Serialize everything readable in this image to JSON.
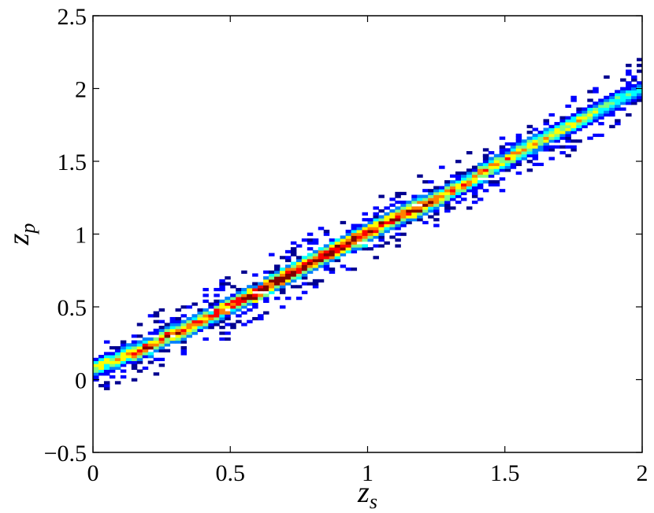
{
  "chart_data": {
    "type": "heatmap",
    "title": "",
    "xlabel": "z",
    "xlabel_sub": "s",
    "ylabel": "z",
    "ylabel_sub": "p",
    "xlim": [
      0,
      2
    ],
    "ylim": [
      -0.5,
      2.5
    ],
    "xticks": [
      0,
      0.5,
      1,
      1.5,
      2
    ],
    "xtick_labels": [
      "0",
      "0.5",
      "1",
      "1.5",
      "2"
    ],
    "yticks": [
      -0.5,
      0,
      0.5,
      1,
      1.5,
      2,
      2.5
    ],
    "ytick_labels": [
      "−0.5",
      "0",
      "0.5",
      "1",
      "1.5",
      "2",
      "2.5"
    ],
    "grid": false,
    "legend": "none",
    "colormap": [
      "#00008f",
      "#0000ff",
      "#0080ff",
      "#00ffff",
      "#80ff80",
      "#ffff00",
      "#ff8000",
      "#ff0000",
      "#800000"
    ],
    "bin_width": 0.02,
    "ridge": {
      "x": [
        0.0,
        0.1,
        0.2,
        0.3,
        0.4,
        0.5,
        0.6,
        0.7,
        0.8,
        0.9,
        1.0,
        1.1,
        1.2,
        1.3,
        1.4,
        1.5,
        1.6,
        1.7,
        1.8,
        1.9,
        2.0
      ],
      "y": [
        0.08,
        0.15,
        0.22,
        0.32,
        0.4,
        0.5,
        0.6,
        0.7,
        0.82,
        0.9,
        1.0,
        1.1,
        1.2,
        1.28,
        1.4,
        1.5,
        1.6,
        1.7,
        1.8,
        1.9,
        2.0
      ],
      "peak_density": [
        0.6,
        0.7,
        0.85,
        0.8,
        0.8,
        0.85,
        0.95,
        1.0,
        1.0,
        1.0,
        0.95,
        0.9,
        0.9,
        0.75,
        0.75,
        0.7,
        0.7,
        0.6,
        0.6,
        0.5,
        0.45
      ]
    }
  }
}
